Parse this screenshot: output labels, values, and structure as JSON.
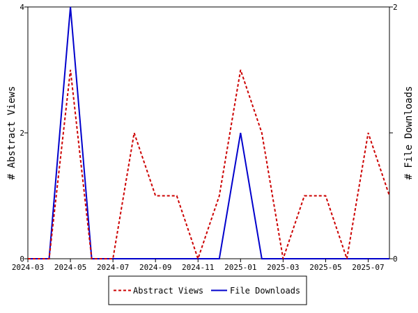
{
  "chart_data": {
    "type": "line",
    "title": "",
    "x": [
      "2024-03",
      "2024-04",
      "2024-05",
      "2024-06",
      "2024-07",
      "2024-08",
      "2024-09",
      "2024-10",
      "2024-11",
      "2024-12",
      "2025-01",
      "2025-02",
      "2025-03",
      "2025-04",
      "2025-05",
      "2025-06",
      "2025-07",
      "2025-08"
    ],
    "x_ticks": [
      "2024-03",
      "2024-05",
      "2024-07",
      "2024-09",
      "2024-11",
      "2025-01",
      "2025-03",
      "2025-05",
      "2025-07"
    ],
    "ylabel_left": "# Abstract Views",
    "ylabel_right": "# File Downloads",
    "ylim_left": [
      0,
      4
    ],
    "ylim_right": [
      0,
      2
    ],
    "yticks_left": [
      "0",
      "2",
      "4"
    ],
    "yticks_right": [
      "0",
      "1",
      "2"
    ],
    "grid": false,
    "legend_position": "bottom-center",
    "series": [
      {
        "name": "Abstract Views",
        "axis": "left",
        "color": "#cc0000",
        "style": "dashed",
        "values": [
          0,
          0,
          3,
          0,
          0,
          2,
          1,
          1,
          0,
          1,
          3,
          2,
          0,
          1,
          1,
          0,
          2,
          1
        ]
      },
      {
        "name": "File Downloads",
        "axis": "right",
        "color": "#0000cc",
        "style": "solid",
        "values": [
          0,
          0,
          2,
          0,
          0,
          0,
          0,
          0,
          0,
          0,
          1,
          0,
          0,
          0,
          0,
          0,
          0,
          0
        ]
      }
    ]
  }
}
